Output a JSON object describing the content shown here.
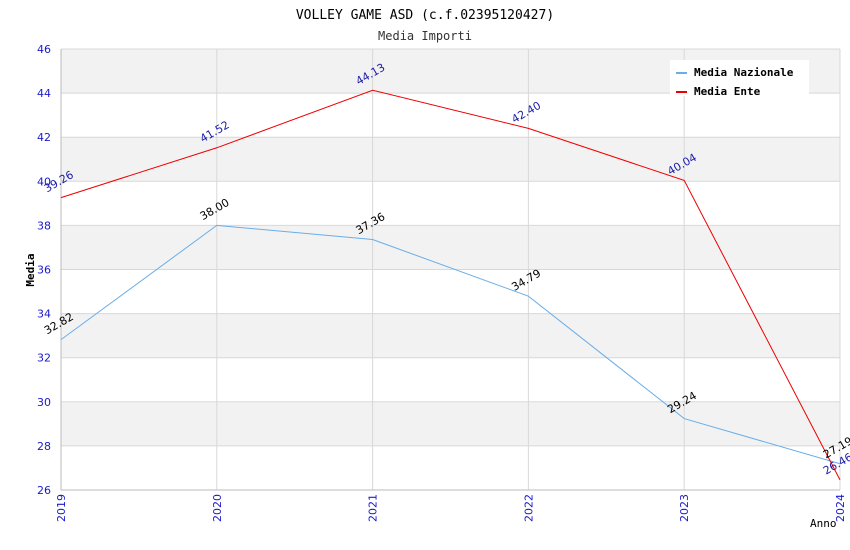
{
  "chart_data": {
    "type": "line",
    "title": "VOLLEY GAME ASD (c.f.02395120427)",
    "subtitle": "Media Importi",
    "xlabel": "Anno",
    "ylabel": "Media",
    "ylim": [
      26,
      46
    ],
    "yticks": [
      "26",
      "28",
      "30",
      "32",
      "34",
      "36",
      "38",
      "40",
      "42",
      "44",
      "46"
    ],
    "categories": [
      "2019",
      "2020",
      "2021",
      "2022",
      "2023",
      "2024"
    ],
    "grid": true,
    "legend_position": "top-right",
    "series": [
      {
        "name": "Media Nazionale",
        "color": "#6aaee8",
        "label_color": "#000000",
        "values": [
          32.82,
          38.0,
          37.36,
          34.79,
          29.24,
          27.19
        ],
        "labels": [
          "32.82",
          "38.00",
          "37.36",
          "34.79",
          "29.24",
          "27.19"
        ]
      },
      {
        "name": "Media Ente",
        "color": "#ee0000",
        "label_color": "#1a1aa6",
        "values": [
          39.26,
          41.52,
          44.13,
          42.4,
          40.04,
          26.46
        ],
        "labels": [
          "39.26",
          "41.52",
          "44.13",
          "42.40",
          "40.04",
          "26.46"
        ]
      }
    ]
  }
}
